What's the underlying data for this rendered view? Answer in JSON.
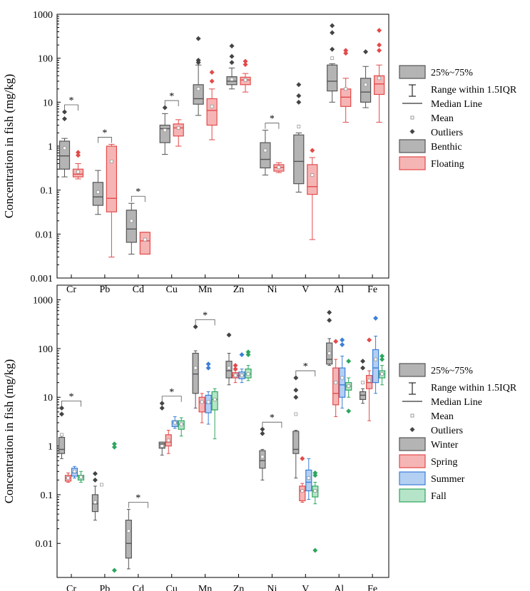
{
  "chart_data": [
    {
      "type": "box",
      "title": "",
      "ylabel": "Concentration in fish (mg/kg)",
      "xlabel": "",
      "yscale": "log",
      "ylim": [
        0.001,
        1000
      ],
      "y_ticks": [
        "0.001",
        "0.01",
        "0.1",
        "1",
        "10",
        "100",
        "1000"
      ],
      "categories": [
        "Cr",
        "Pb",
        "Cd",
        "Cu",
        "Mn",
        "Zn",
        "Ni",
        "V",
        "Al",
        "Fe"
      ],
      "series": [
        {
          "name": "Benthic",
          "color": "#555555",
          "fill": "#b4b4b4"
        },
        {
          "name": "Floating",
          "color": "#e34a4a",
          "fill": "#f6b5b5"
        }
      ],
      "boxes": [
        {
          "cat": 0,
          "s": 0,
          "wl": 0.2,
          "q1": 0.3,
          "med": 0.6,
          "q3": 1.3,
          "wh": 1.5,
          "mean": 0.9,
          "out": [
            4.2,
            6.0
          ]
        },
        {
          "cat": 0,
          "s": 1,
          "wl": 0.18,
          "q1": 0.2,
          "med": 0.23,
          "q3": 0.3,
          "wh": 0.4,
          "mean": 0.26,
          "out": [
            0.62,
            0.72
          ]
        },
        {
          "cat": 1,
          "s": 0,
          "wl": 0.028,
          "q1": 0.045,
          "med": 0.07,
          "q3": 0.15,
          "wh": 0.28,
          "mean": 0.09,
          "out": []
        },
        {
          "cat": 1,
          "s": 1,
          "wl": 0.003,
          "q1": 0.032,
          "med": 0.065,
          "q3": 1.0,
          "wh": 1.1,
          "mean": 0.45,
          "out": []
        },
        {
          "cat": 2,
          "s": 0,
          "wl": 0.0035,
          "q1": 0.0065,
          "med": 0.013,
          "q3": 0.035,
          "wh": 0.05,
          "mean": 0.02,
          "out": []
        },
        {
          "cat": 2,
          "s": 1,
          "wl": 0.0035,
          "q1": 0.0035,
          "med": 0.007,
          "q3": 0.011,
          "wh": 0.011,
          "mean": 0.0075,
          "out": []
        },
        {
          "cat": 3,
          "s": 0,
          "wl": 0.65,
          "q1": 1.2,
          "med": 2.5,
          "q3": 3.0,
          "wh": 5.5,
          "mean": 2.3,
          "out": [
            7.5
          ]
        },
        {
          "cat": 3,
          "s": 1,
          "wl": 1.0,
          "q1": 1.7,
          "med": 2.6,
          "q3": 3.2,
          "wh": 4.0,
          "mean": 2.6,
          "out": []
        },
        {
          "cat": 4,
          "s": 0,
          "wl": 5.0,
          "q1": 9.0,
          "med": 12.0,
          "q3": 25.0,
          "wh": 70.0,
          "mean": 20.0,
          "out": [
            80,
            90,
            280
          ]
        },
        {
          "cat": 4,
          "s": 1,
          "wl": 1.4,
          "q1": 3.0,
          "med": 6.5,
          "q3": 12.0,
          "wh": 20.0,
          "mean": 8.0,
          "out": [
            30,
            48
          ]
        },
        {
          "cat": 5,
          "s": 0,
          "wl": 20.0,
          "q1": 25.0,
          "med": 30.0,
          "q3": 38.0,
          "wh": 60.0,
          "mean": 33.0,
          "out": [
            80,
            110,
            190
          ]
        },
        {
          "cat": 5,
          "s": 1,
          "wl": 17.0,
          "q1": 25.0,
          "med": 32.0,
          "q3": 37.0,
          "wh": 45.0,
          "mean": 32.0,
          "out": [
            72,
            85
          ]
        },
        {
          "cat": 6,
          "s": 0,
          "wl": 0.22,
          "q1": 0.32,
          "med": 0.5,
          "q3": 1.2,
          "wh": 2.3,
          "mean": 0.8,
          "out": []
        },
        {
          "cat": 6,
          "s": 1,
          "wl": 0.25,
          "q1": 0.27,
          "med": 0.33,
          "q3": 0.38,
          "wh": 0.42,
          "mean": 0.33,
          "out": []
        },
        {
          "cat": 7,
          "s": 0,
          "wl": 0.09,
          "q1": 0.14,
          "med": 0.45,
          "q3": 1.8,
          "wh": 2.0,
          "mean": 2.8,
          "out": [
            10,
            14,
            25
          ]
        },
        {
          "cat": 7,
          "s": 1,
          "wl": 0.0075,
          "q1": 0.08,
          "med": 0.12,
          "q3": 0.38,
          "wh": 0.55,
          "mean": 0.22,
          "out": [
            0.8
          ]
        },
        {
          "cat": 8,
          "s": 0,
          "wl": 10.0,
          "q1": 18.0,
          "med": 30.0,
          "q3": 70.0,
          "wh": 75.0,
          "mean": 100.0,
          "out": [
            160,
            380,
            550
          ]
        },
        {
          "cat": 8,
          "s": 1,
          "wl": 3.5,
          "q1": 8.0,
          "med": 13.0,
          "q3": 20.0,
          "wh": 35.0,
          "mean": 20.0,
          "out": [
            130,
            150
          ]
        },
        {
          "cat": 9,
          "s": 0,
          "wl": 7.5,
          "q1": 10.0,
          "med": 17.0,
          "q3": 35.0,
          "wh": 65.0,
          "mean": 25.0,
          "out": [
            140
          ]
        },
        {
          "cat": 9,
          "s": 1,
          "wl": 3.5,
          "q1": 15.0,
          "med": 26.0,
          "q3": 40.0,
          "wh": 70.0,
          "mean": 35.0,
          "out": [
            150,
            200,
            430
          ]
        }
      ],
      "significance": [
        {
          "cat": 0,
          "label": "*"
        },
        {
          "cat": 1,
          "label": "*"
        },
        {
          "cat": 2,
          "label": "*"
        },
        {
          "cat": 3,
          "label": "*"
        },
        {
          "cat": 6,
          "label": "*"
        }
      ],
      "legend": {
        "position": "right",
        "items": [
          {
            "kind": "box",
            "label": "25%~75%"
          },
          {
            "kind": "range",
            "label": "Range within 1.5IQR"
          },
          {
            "kind": "median",
            "label": "Median Line"
          },
          {
            "kind": "mean",
            "label": "Mean"
          },
          {
            "kind": "outlier",
            "label": "Outliers"
          },
          {
            "kind": "series",
            "series": 0,
            "label": "Benthic"
          },
          {
            "kind": "series",
            "series": 1,
            "label": "Floating"
          }
        ]
      }
    },
    {
      "type": "box",
      "title": "",
      "ylabel": "Concentration in fish (mg/kg)",
      "xlabel": "",
      "yscale": "log",
      "ylim": [
        0.002,
        2000
      ],
      "y_ticks": [
        "0.01",
        "0.1",
        "1",
        "10",
        "100",
        "1000"
      ],
      "categories": [
        "Cr",
        "Pb",
        "Cd",
        "Cu",
        "Mn",
        "Zn",
        "Ni",
        "V",
        "Al",
        "Fe"
      ],
      "series": [
        {
          "name": "Winter",
          "color": "#555555",
          "fill": "#b4b4b4"
        },
        {
          "name": "Spring",
          "color": "#e34a4a",
          "fill": "#f6b5b5"
        },
        {
          "name": "Summer",
          "color": "#3a7fd8",
          "fill": "#b3cff2"
        },
        {
          "name": "Fall",
          "color": "#2ea65e",
          "fill": "#b6e4c8"
        }
      ],
      "boxes": [
        {
          "cat": 0,
          "s": 0,
          "wl": 0.55,
          "q1": 0.7,
          "med": 0.85,
          "q3": 1.5,
          "wh": 1.6,
          "mean": 1.7,
          "out": [
            4.5,
            6.0
          ]
        },
        {
          "cat": 0,
          "s": 1,
          "wl": 0.18,
          "q1": 0.19,
          "med": 0.22,
          "q3": 0.25,
          "wh": 0.28,
          "mean": 0.22,
          "out": []
        },
        {
          "cat": 0,
          "s": 2,
          "wl": 0.22,
          "q1": 0.24,
          "med": 0.28,
          "q3": 0.35,
          "wh": 0.38,
          "mean": 0.3,
          "out": []
        },
        {
          "cat": 0,
          "s": 3,
          "wl": 0.18,
          "q1": 0.2,
          "med": 0.23,
          "q3": 0.25,
          "wh": 0.3,
          "mean": 0.23,
          "out": []
        },
        {
          "cat": 1,
          "s": 0,
          "wl": 0.03,
          "q1": 0.045,
          "med": 0.065,
          "q3": 0.1,
          "wh": 0.15,
          "mean": 0.07,
          "out": [
            0.2,
            0.27
          ]
        },
        {
          "cat": 1,
          "s": 1,
          "wl": null,
          "q1": null,
          "med": null,
          "q3": null,
          "wh": null,
          "mean": 0.16,
          "out": []
        },
        {
          "cat": 1,
          "s": 3,
          "wl": null,
          "q1": null,
          "med": null,
          "q3": null,
          "wh": null,
          "mean": null,
          "out": [
            0.0028,
            0.95,
            1.1
          ]
        },
        {
          "cat": 2,
          "s": 0,
          "wl": 0.003,
          "q1": 0.005,
          "med": 0.01,
          "q3": 0.03,
          "wh": 0.05,
          "mean": 0.018,
          "out": []
        },
        {
          "cat": 3,
          "s": 0,
          "wl": 0.65,
          "q1": 0.9,
          "med": 1.1,
          "q3": 1.2,
          "wh": 1.2,
          "mean": 1.0,
          "out": [
            6.0,
            7.5
          ]
        },
        {
          "cat": 3,
          "s": 1,
          "wl": 0.7,
          "q1": 1.0,
          "med": 1.2,
          "q3": 1.7,
          "wh": 2.1,
          "mean": 1.3,
          "out": []
        },
        {
          "cat": 3,
          "s": 2,
          "wl": 2.3,
          "q1": 2.5,
          "med": 3.0,
          "q3": 3.3,
          "wh": 4.0,
          "mean": 3.0,
          "out": []
        },
        {
          "cat": 3,
          "s": 3,
          "wl": 1.6,
          "q1": 2.2,
          "med": 2.8,
          "q3": 3.3,
          "wh": 3.8,
          "mean": 2.8,
          "out": []
        },
        {
          "cat": 4,
          "s": 0,
          "wl": 6.0,
          "q1": 12.0,
          "med": 30.0,
          "q3": 80.0,
          "wh": 90.0,
          "mean": 40.0,
          "out": [
            280
          ]
        },
        {
          "cat": 4,
          "s": 1,
          "wl": 3.0,
          "q1": 5.0,
          "med": 8.0,
          "q3": 10.0,
          "wh": 12.0,
          "mean": 8.0,
          "out": []
        },
        {
          "cat": 4,
          "s": 2,
          "wl": 2.8,
          "q1": 4.8,
          "med": 7.5,
          "q3": 11.0,
          "wh": 13.0,
          "mean": 8.0,
          "out": [
            40,
            48
          ]
        },
        {
          "cat": 4,
          "s": 3,
          "wl": 1.4,
          "q1": 5.5,
          "med": 9.0,
          "q3": 13.0,
          "wh": 15.0,
          "mean": 9.0,
          "out": []
        },
        {
          "cat": 5,
          "s": 0,
          "wl": 18.0,
          "q1": 25.0,
          "med": 35.0,
          "q3": 55.0,
          "wh": 80.0,
          "mean": 40.0,
          "out": [
            190
          ]
        },
        {
          "cat": 5,
          "s": 1,
          "wl": 20.0,
          "q1": 25.0,
          "med": 28.0,
          "q3": 32.0,
          "wh": 36.0,
          "mean": 28.0,
          "out": [
            38,
            45
          ]
        },
        {
          "cat": 5,
          "s": 2,
          "wl": 20.0,
          "q1": 24.0,
          "med": 28.0,
          "q3": 33.0,
          "wh": 38.0,
          "mean": 28.0,
          "out": [
            75
          ]
        },
        {
          "cat": 5,
          "s": 3,
          "wl": 22.0,
          "q1": 25.0,
          "med": 30.0,
          "q3": 38.0,
          "wh": 45.0,
          "mean": 30.0,
          "out": [
            75,
            85
          ]
        },
        {
          "cat": 6,
          "s": 0,
          "wl": 0.2,
          "q1": 0.35,
          "med": 0.5,
          "q3": 0.8,
          "wh": 0.85,
          "mean": 0.6,
          "out": [
            1.8,
            2.2
          ]
        },
        {
          "cat": 7,
          "s": 0,
          "wl": 0.22,
          "q1": 0.7,
          "med": 0.85,
          "q3": 2.0,
          "wh": 2.1,
          "mean": 4.5,
          "out": [
            10,
            14,
            25
          ]
        },
        {
          "cat": 7,
          "s": 1,
          "wl": 0.07,
          "q1": 0.075,
          "med": 0.12,
          "q3": 0.15,
          "wh": 0.17,
          "mean": 0.12,
          "out": [
            0.55
          ]
        },
        {
          "cat": 7,
          "s": 2,
          "wl": 0.08,
          "q1": 0.12,
          "med": 0.18,
          "q3": 0.32,
          "wh": 0.55,
          "mean": 0.22,
          "out": []
        },
        {
          "cat": 7,
          "s": 3,
          "wl": 0.065,
          "q1": 0.09,
          "med": 0.12,
          "q3": 0.15,
          "wh": 0.18,
          "mean": 0.12,
          "out": [
            0.0072,
            0.25,
            0.28
          ]
        },
        {
          "cat": 8,
          "s": 0,
          "wl": 45.0,
          "q1": 48.0,
          "med": 60.0,
          "q3": 130.0,
          "wh": 160.0,
          "mean": 80.0,
          "out": [
            380,
            550
          ]
        },
        {
          "cat": 8,
          "s": 1,
          "wl": 4.0,
          "q1": 7.0,
          "med": 12.0,
          "q3": 40.0,
          "wh": 60.0,
          "mean": 20.0,
          "out": [
            140
          ]
        },
        {
          "cat": 8,
          "s": 2,
          "wl": 6.0,
          "q1": 10.0,
          "med": 18.0,
          "q3": 40.0,
          "wh": 70.0,
          "mean": 25.0,
          "out": [
            120,
            150
          ]
        },
        {
          "cat": 8,
          "s": 3,
          "wl": 10.0,
          "q1": 14.0,
          "med": 17.0,
          "q3": 20.0,
          "wh": 25.0,
          "mean": 17.0,
          "out": [
            5.2,
            55
          ]
        },
        {
          "cat": 9,
          "s": 0,
          "wl": 7.5,
          "q1": 9.0,
          "med": 11.0,
          "q3": 13.0,
          "wh": 15.0,
          "mean": 20.0,
          "out": [
            40,
            55
          ]
        },
        {
          "cat": 9,
          "s": 1,
          "wl": 3.3,
          "q1": 15.0,
          "med": 20.0,
          "q3": 28.0,
          "wh": 35.0,
          "mean": 22.0,
          "out": [
            150
          ]
        },
        {
          "cat": 9,
          "s": 2,
          "wl": 12.0,
          "q1": 20.0,
          "med": 40.0,
          "q3": 95.0,
          "wh": 180.0,
          "mean": 60.0,
          "out": [
            420
          ]
        },
        {
          "cat": 9,
          "s": 3,
          "wl": 18.0,
          "q1": 25.0,
          "med": 30.0,
          "q3": 35.0,
          "wh": 45.0,
          "mean": 30.0,
          "out": [
            60,
            70
          ]
        }
      ],
      "significance": [
        {
          "cat": 0,
          "label": "*"
        },
        {
          "cat": 2,
          "label": "*"
        },
        {
          "cat": 3,
          "label": "*"
        },
        {
          "cat": 4,
          "label": "*"
        },
        {
          "cat": 6,
          "label": "*"
        },
        {
          "cat": 7,
          "label": "*"
        }
      ],
      "legend": {
        "position": "right",
        "items": [
          {
            "kind": "box",
            "label": "25%~75%"
          },
          {
            "kind": "range",
            "label": "Range within 1.5IQR"
          },
          {
            "kind": "median",
            "label": "Median Line"
          },
          {
            "kind": "mean",
            "label": "Mean"
          },
          {
            "kind": "outlier",
            "label": "Outliers"
          },
          {
            "kind": "series",
            "series": 0,
            "label": "Winter"
          },
          {
            "kind": "series",
            "series": 1,
            "label": "Spring"
          },
          {
            "kind": "series",
            "series": 2,
            "label": "Summer"
          },
          {
            "kind": "series",
            "series": 3,
            "label": "Fall"
          }
        ]
      }
    }
  ]
}
